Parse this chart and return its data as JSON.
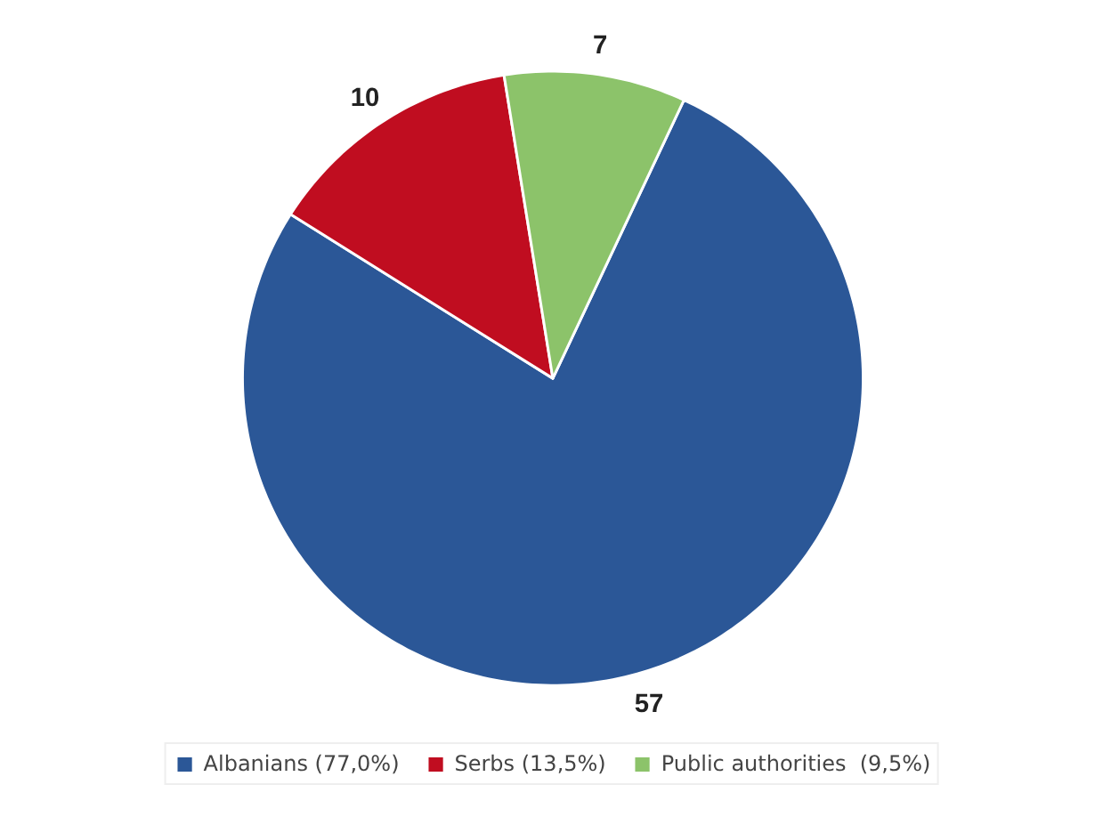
{
  "chart_data": {
    "type": "pie",
    "categories": [
      "Albanians (77,0%)",
      "Serbs (13,5%)",
      "Public authorities  (9,5%)"
    ],
    "values": [
      57,
      10,
      7
    ],
    "colors": [
      "#2b5797",
      "#c00d20",
      "#8cc36a"
    ],
    "data_labels": true,
    "legend": "bottom"
  }
}
